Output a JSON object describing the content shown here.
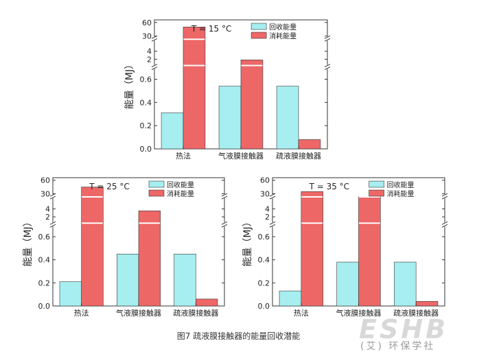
{
  "figure_caption": "图7 疏液膜接触器的能量回收潜能",
  "watermark": {
    "logo": "ESHB",
    "text": "(艾) 环保学社"
  },
  "colors": {
    "recovered": "#a6eef0",
    "consumed": "#ee6767",
    "bar_edge": "#333333",
    "axis": "#333333"
  },
  "chart_data": [
    {
      "type": "bar",
      "title": "T = 15 °C",
      "ylabel": "能量（MJ）",
      "categories": [
        "热法",
        "气液膜接触器",
        "疏液膜接触器"
      ],
      "series": [
        {
          "name": "回收能量",
          "values": [
            0.31,
            0.54,
            0.54
          ]
        },
        {
          "name": "消耗能量",
          "values": [
            50,
            1.8,
            0.08
          ]
        }
      ],
      "yaxis_break": {
        "lower_range": [
          0,
          0.7
        ],
        "lower_ticks": [
          "0.0",
          "0.2",
          "0.4",
          "0.6"
        ],
        "upper_ticks": [
          "2",
          "4",
          "30",
          "60"
        ]
      }
    },
    {
      "type": "bar",
      "title": "T = 25 °C",
      "ylabel": "能量（MJ）",
      "categories": [
        "热法",
        "气液膜接触器",
        "疏液膜接触器"
      ],
      "series": [
        {
          "name": "回收能量",
          "values": [
            0.21,
            0.45,
            0.45
          ]
        },
        {
          "name": "消耗能量",
          "values": [
            45,
            3.5,
            0.06
          ]
        }
      ],
      "yaxis_break": {
        "lower_range": [
          0,
          0.7
        ],
        "lower_ticks": [
          "0.0",
          "0.2",
          "0.4",
          "0.6"
        ],
        "upper_ticks": [
          "2",
          "4",
          "30",
          "60"
        ]
      }
    },
    {
      "type": "bar",
      "title": "T = 35 °C",
      "ylabel": "能量（MJ）",
      "categories": [
        "热法",
        "气液膜接触器",
        "疏液膜接触器"
      ],
      "series": [
        {
          "name": "回收能量",
          "values": [
            0.13,
            0.38,
            0.38
          ]
        },
        {
          "name": "消耗能量",
          "values": [
            35,
            25,
            0.04
          ]
        }
      ],
      "yaxis_break": {
        "lower_range": [
          0,
          0.7
        ],
        "lower_ticks": [
          "0.0",
          "0.2",
          "0.4",
          "0.6"
        ],
        "upper_ticks": [
          "2",
          "4",
          "30",
          "60"
        ]
      }
    }
  ]
}
